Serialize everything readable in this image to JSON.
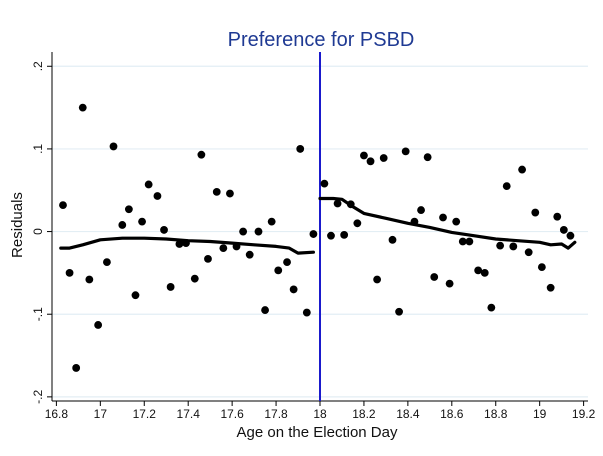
{
  "chart_data": {
    "type": "scatter",
    "title": "Preference for PSBD",
    "xlabel": "Age on the Election Day",
    "ylabel": "Residuals",
    "xlim": [
      16.78,
      19.22
    ],
    "ylim": [
      -0.205,
      0.21
    ],
    "x_ticks": [
      16.8,
      17,
      17.2,
      17.4,
      17.6,
      17.8,
      18,
      18.2,
      18.4,
      18.6,
      18.8,
      19,
      19.2
    ],
    "x_tick_labels": [
      "16.8",
      "17",
      "17.2",
      "17.4",
      "17.6",
      "17.8",
      "18",
      "18.2",
      "18.4",
      "18.6",
      "18.8",
      "19",
      "19.2"
    ],
    "y_ticks": [
      -0.2,
      -0.1,
      0,
      0.1,
      0.2
    ],
    "y_tick_labels": [
      "-.2",
      "-.1",
      "0",
      ".1",
      ".2"
    ],
    "grid": true,
    "cutoff_x": 18,
    "colors": {
      "points": "#000000",
      "fit_line": "#000000",
      "cutoff_line": "#1a1acc",
      "title": "#1f3a93",
      "grid": "#e3eef4"
    },
    "points": [
      {
        "x": 16.83,
        "y": 0.032
      },
      {
        "x": 16.86,
        "y": -0.05
      },
      {
        "x": 16.89,
        "y": -0.165
      },
      {
        "x": 16.92,
        "y": 0.15
      },
      {
        "x": 16.95,
        "y": -0.058
      },
      {
        "x": 16.99,
        "y": -0.113
      },
      {
        "x": 17.03,
        "y": -0.037
      },
      {
        "x": 17.06,
        "y": 0.103
      },
      {
        "x": 17.1,
        "y": 0.008
      },
      {
        "x": 17.13,
        "y": 0.027
      },
      {
        "x": 17.16,
        "y": -0.077
      },
      {
        "x": 17.19,
        "y": 0.012
      },
      {
        "x": 17.22,
        "y": 0.057
      },
      {
        "x": 17.26,
        "y": 0.043
      },
      {
        "x": 17.29,
        "y": 0.002
      },
      {
        "x": 17.32,
        "y": -0.067
      },
      {
        "x": 17.36,
        "y": -0.015
      },
      {
        "x": 17.39,
        "y": -0.014
      },
      {
        "x": 17.43,
        "y": -0.057
      },
      {
        "x": 17.46,
        "y": 0.093
      },
      {
        "x": 17.49,
        "y": -0.033
      },
      {
        "x": 17.53,
        "y": 0.048
      },
      {
        "x": 17.56,
        "y": -0.02
      },
      {
        "x": 17.59,
        "y": 0.046
      },
      {
        "x": 17.62,
        "y": -0.018
      },
      {
        "x": 17.65,
        "y": 0.0
      },
      {
        "x": 17.68,
        "y": -0.028
      },
      {
        "x": 17.72,
        "y": 0.0
      },
      {
        "x": 17.75,
        "y": -0.095
      },
      {
        "x": 17.78,
        "y": 0.012
      },
      {
        "x": 17.81,
        "y": -0.047
      },
      {
        "x": 17.85,
        "y": -0.037
      },
      {
        "x": 17.88,
        "y": -0.07
      },
      {
        "x": 17.91,
        "y": 0.1
      },
      {
        "x": 17.94,
        "y": -0.098
      },
      {
        "x": 17.97,
        "y": -0.003
      },
      {
        "x": 18.02,
        "y": 0.058
      },
      {
        "x": 18.05,
        "y": -0.005
      },
      {
        "x": 18.08,
        "y": 0.034
      },
      {
        "x": 18.11,
        "y": -0.004
      },
      {
        "x": 18.14,
        "y": 0.033
      },
      {
        "x": 18.17,
        "y": 0.01
      },
      {
        "x": 18.2,
        "y": 0.092
      },
      {
        "x": 18.23,
        "y": 0.085
      },
      {
        "x": 18.26,
        "y": -0.058
      },
      {
        "x": 18.29,
        "y": 0.089
      },
      {
        "x": 18.33,
        "y": -0.01
      },
      {
        "x": 18.36,
        "y": -0.097
      },
      {
        "x": 18.39,
        "y": 0.097
      },
      {
        "x": 18.43,
        "y": 0.012
      },
      {
        "x": 18.46,
        "y": 0.026
      },
      {
        "x": 18.49,
        "y": 0.09
      },
      {
        "x": 18.52,
        "y": -0.055
      },
      {
        "x": 18.56,
        "y": 0.017
      },
      {
        "x": 18.59,
        "y": -0.063
      },
      {
        "x": 18.62,
        "y": 0.012
      },
      {
        "x": 18.65,
        "y": -0.012
      },
      {
        "x": 18.68,
        "y": -0.012
      },
      {
        "x": 18.72,
        "y": -0.047
      },
      {
        "x": 18.75,
        "y": -0.05
      },
      {
        "x": 18.78,
        "y": -0.092
      },
      {
        "x": 18.82,
        "y": -0.017
      },
      {
        "x": 18.85,
        "y": 0.055
      },
      {
        "x": 18.88,
        "y": -0.018
      },
      {
        "x": 18.92,
        "y": 0.075
      },
      {
        "x": 18.95,
        "y": -0.025
      },
      {
        "x": 18.98,
        "y": 0.023
      },
      {
        "x": 19.01,
        "y": -0.043
      },
      {
        "x": 19.05,
        "y": -0.068
      },
      {
        "x": 19.08,
        "y": 0.018
      },
      {
        "x": 19.11,
        "y": 0.002
      },
      {
        "x": 19.14,
        "y": -0.005
      }
    ],
    "fit_left": [
      {
        "x": 16.82,
        "y": -0.02
      },
      {
        "x": 16.86,
        "y": -0.02
      },
      {
        "x": 16.92,
        "y": -0.016
      },
      {
        "x": 17.0,
        "y": -0.01
      },
      {
        "x": 17.1,
        "y": -0.008
      },
      {
        "x": 17.2,
        "y": -0.008
      },
      {
        "x": 17.3,
        "y": -0.009
      },
      {
        "x": 17.4,
        "y": -0.011
      },
      {
        "x": 17.5,
        "y": -0.012
      },
      {
        "x": 17.6,
        "y": -0.014
      },
      {
        "x": 17.7,
        "y": -0.016
      },
      {
        "x": 17.8,
        "y": -0.018
      },
      {
        "x": 17.86,
        "y": -0.02
      },
      {
        "x": 17.9,
        "y": -0.026
      },
      {
        "x": 17.97,
        "y": -0.025
      }
    ],
    "fit_right": [
      {
        "x": 18.0,
        "y": 0.04
      },
      {
        "x": 18.06,
        "y": 0.04
      },
      {
        "x": 18.1,
        "y": 0.039
      },
      {
        "x": 18.15,
        "y": 0.03
      },
      {
        "x": 18.2,
        "y": 0.022
      },
      {
        "x": 18.3,
        "y": 0.016
      },
      {
        "x": 18.4,
        "y": 0.01
      },
      {
        "x": 18.5,
        "y": 0.005
      },
      {
        "x": 18.6,
        "y": -0.001
      },
      {
        "x": 18.7,
        "y": -0.005
      },
      {
        "x": 18.8,
        "y": -0.009
      },
      {
        "x": 18.9,
        "y": -0.011
      },
      {
        "x": 19.0,
        "y": -0.013
      },
      {
        "x": 19.05,
        "y": -0.016
      },
      {
        "x": 19.1,
        "y": -0.015
      },
      {
        "x": 19.13,
        "y": -0.02
      },
      {
        "x": 19.16,
        "y": -0.013
      }
    ]
  }
}
